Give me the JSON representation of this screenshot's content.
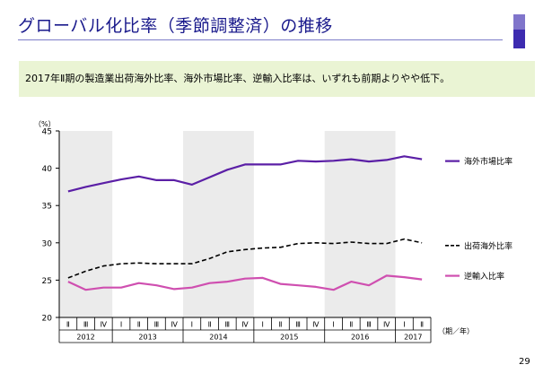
{
  "slide": {
    "title": "グローバル化比率（季節調整済）の推移",
    "summary": "2017年Ⅱ期の製造業出荷海外比率、海外市場比率、逆輸入比率は、いずれも前期よりやや低下。",
    "page_number": "29"
  },
  "colors": {
    "title": "#1a1a8c",
    "summary_bg": "#eaf4d4",
    "band": "#ebebeb",
    "overseas_market": "#5b1fa6",
    "overseas_shipment": "#000000",
    "reverse_import": "#cf4fb0"
  },
  "chart_data": {
    "type": "line",
    "y_unit_label": "（%）",
    "x_unit_label": "（期／年）",
    "ylim": [
      20,
      45
    ],
    "yticks": [
      "20",
      "25",
      "30",
      "35",
      "40",
      "45"
    ],
    "quarters": [
      "Ⅱ",
      "Ⅲ",
      "Ⅳ",
      "Ⅰ",
      "Ⅱ",
      "Ⅲ",
      "Ⅳ",
      "Ⅰ",
      "Ⅱ",
      "Ⅲ",
      "Ⅳ",
      "Ⅰ",
      "Ⅱ",
      "Ⅲ",
      "Ⅳ",
      "Ⅰ",
      "Ⅱ",
      "Ⅲ",
      "Ⅳ",
      "Ⅰ",
      "Ⅱ"
    ],
    "years": [
      {
        "label": "2012",
        "span": 3
      },
      {
        "label": "2013",
        "span": 4
      },
      {
        "label": "2014",
        "span": 4
      },
      {
        "label": "2015",
        "span": 4
      },
      {
        "label": "2016",
        "span": 4
      },
      {
        "label": "2017",
        "span": 2
      }
    ],
    "series": [
      {
        "name": "海外市場比率",
        "style": "solid",
        "values": [
          36.9,
          37.5,
          38.0,
          38.5,
          38.9,
          38.4,
          38.4,
          37.8,
          38.8,
          39.8,
          40.5,
          40.5,
          40.5,
          41.0,
          40.9,
          41.0,
          41.2,
          40.9,
          41.1,
          41.6,
          41.2
        ]
      },
      {
        "name": "出荷海外比率",
        "style": "dashed",
        "values": [
          25.3,
          26.2,
          26.9,
          27.2,
          27.3,
          27.2,
          27.2,
          27.2,
          27.9,
          28.8,
          29.1,
          29.3,
          29.4,
          29.9,
          30.0,
          29.9,
          30.1,
          29.9,
          29.9,
          30.5,
          30.0
        ]
      },
      {
        "name": "逆輸入比率",
        "style": "solid",
        "values": [
          24.8,
          23.7,
          24.0,
          24.0,
          24.6,
          24.3,
          23.8,
          24.0,
          24.6,
          24.8,
          25.2,
          25.3,
          24.5,
          24.3,
          24.1,
          23.7,
          24.8,
          24.3,
          25.6,
          25.4,
          25.1
        ]
      }
    ]
  }
}
